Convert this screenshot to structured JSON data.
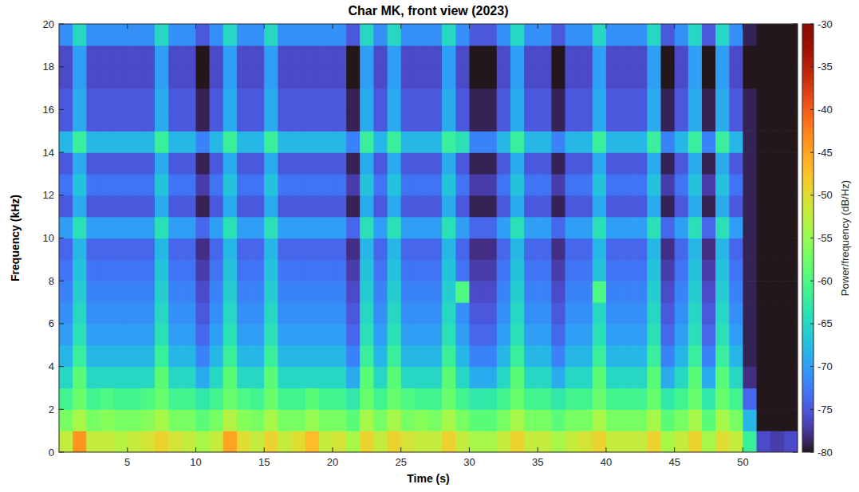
{
  "chart_data": {
    "type": "heatmap",
    "title": "Char MK, front view (2023)",
    "x_label": "Time (s)",
    "y_label": "Frequency (kHz)",
    "colorbar_label": "Power/frequency (dB/Hz)",
    "xlim": [
      0,
      54
    ],
    "ylim": [
      0,
      20
    ],
    "xticks": [
      5,
      10,
      15,
      20,
      25,
      30,
      35,
      40,
      45,
      50
    ],
    "yticks": [
      0,
      2,
      4,
      6,
      8,
      10,
      12,
      14,
      16,
      18,
      20
    ],
    "clim": [
      -80,
      -30
    ],
    "cticks": [
      -30,
      -35,
      -40,
      -45,
      -50,
      -55,
      -60,
      -65,
      -70,
      -75,
      -80
    ],
    "x_bins": [
      0,
      1,
      2,
      3,
      4,
      5,
      6,
      7,
      8,
      9,
      10,
      11,
      12,
      13,
      14,
      15,
      16,
      17,
      18,
      19,
      20,
      21,
      22,
      23,
      24,
      25,
      26,
      27,
      28,
      29,
      30,
      31,
      32,
      33,
      34,
      35,
      36,
      37,
      38,
      39,
      40,
      41,
      42,
      43,
      44,
      45,
      46,
      47,
      48,
      49,
      50,
      51,
      52,
      53,
      54
    ],
    "y_bins": [
      0,
      1,
      2,
      3,
      4,
      5,
      6,
      7,
      8,
      9,
      10,
      11,
      12,
      13,
      14,
      15,
      16,
      17,
      18,
      19,
      20
    ],
    "cells": [
      [
        -52,
        -44,
        -52,
        -52,
        -53,
        -52,
        -51,
        -49,
        -51,
        -52,
        -54,
        -52,
        -45,
        -50,
        -52,
        -49,
        -52,
        -50,
        -47,
        -52,
        -51,
        -54,
        -49,
        -52,
        -49,
        -51,
        -52,
        -52,
        -49,
        -52,
        -54,
        -54,
        -52,
        -49,
        -52,
        -52,
        -54,
        -52,
        -51,
        -49,
        -52,
        -52,
        -52,
        -49,
        -54,
        -52,
        -49,
        -54,
        -50,
        -52,
        -62,
        -76,
        -77,
        -76
      ],
      [
        -57,
        -54,
        -57,
        -56,
        -57,
        -57,
        -56,
        -54,
        -57,
        -57,
        -59,
        -57,
        -53,
        -56,
        -57,
        -54,
        -57,
        -57,
        -55,
        -57,
        -57,
        -59,
        -54,
        -57,
        -54,
        -57,
        -56,
        -57,
        -54,
        -57,
        -59,
        -59,
        -57,
        -54,
        -57,
        -57,
        -59,
        -57,
        -57,
        -54,
        -57,
        -57,
        -57,
        -54,
        -59,
        -57,
        -54,
        -59,
        -54,
        -57,
        -68,
        -80,
        -80,
        -80
      ],
      [
        -61,
        -58,
        -61,
        -60,
        -61,
        -61,
        -60,
        -58,
        -61,
        -61,
        -63,
        -61,
        -58,
        -60,
        -61,
        -58,
        -61,
        -61,
        -59,
        -61,
        -61,
        -63,
        -58,
        -61,
        -58,
        -60,
        -61,
        -61,
        -58,
        -61,
        -63,
        -63,
        -61,
        -58,
        -61,
        -61,
        -63,
        -61,
        -61,
        -58,
        -61,
        -61,
        -61,
        -58,
        -63,
        -61,
        -58,
        -63,
        -58,
        -61,
        -74,
        -80,
        -80,
        -80
      ],
      [
        -65,
        -59,
        -65,
        -65,
        -65,
        -65,
        -65,
        -59,
        -65,
        -65,
        -69,
        -65,
        -59,
        -65,
        -65,
        -59,
        -65,
        -65,
        -65,
        -65,
        -65,
        -69,
        -59,
        -65,
        -59,
        -65,
        -65,
        -65,
        -59,
        -65,
        -69,
        -69,
        -65,
        -59,
        -65,
        -65,
        -69,
        -65,
        -65,
        -59,
        -65,
        -65,
        -65,
        -59,
        -69,
        -65,
        -59,
        -69,
        -59,
        -65,
        -78,
        -80,
        -80,
        -80
      ],
      [
        -68,
        -62,
        -68,
        -68,
        -68,
        -68,
        -68,
        -62,
        -68,
        -68,
        -72,
        -68,
        -62,
        -68,
        -68,
        -62,
        -68,
        -68,
        -68,
        -68,
        -68,
        -72,
        -62,
        -68,
        -62,
        -68,
        -68,
        -68,
        -62,
        -68,
        -72,
        -72,
        -68,
        -62,
        -68,
        -68,
        -72,
        -68,
        -68,
        -62,
        -68,
        -68,
        -68,
        -62,
        -72,
        -68,
        -62,
        -72,
        -62,
        -68,
        -79,
        -80,
        -80,
        -80
      ],
      [
        -70,
        -64,
        -70,
        -70,
        -70,
        -70,
        -70,
        -64,
        -70,
        -70,
        -74,
        -70,
        -64,
        -70,
        -70,
        -64,
        -70,
        -70,
        -70,
        -70,
        -70,
        -74,
        -64,
        -70,
        -64,
        -70,
        -70,
        -70,
        -64,
        -70,
        -74,
        -74,
        -70,
        -64,
        -70,
        -70,
        -74,
        -70,
        -70,
        -64,
        -70,
        -70,
        -70,
        -64,
        -74,
        -70,
        -64,
        -74,
        -64,
        -70,
        -79,
        -80,
        -80,
        -80
      ],
      [
        -71,
        -65,
        -71,
        -71,
        -71,
        -71,
        -71,
        -65,
        -71,
        -71,
        -75,
        -71,
        -65,
        -71,
        -71,
        -65,
        -71,
        -71,
        -71,
        -71,
        -71,
        -75,
        -65,
        -71,
        -65,
        -71,
        -71,
        -71,
        -65,
        -71,
        -75,
        -75,
        -71,
        -65,
        -71,
        -71,
        -75,
        -71,
        -71,
        -65,
        -71,
        -71,
        -71,
        -65,
        -75,
        -71,
        -65,
        -75,
        -65,
        -71,
        -79,
        -80,
        -80,
        -80
      ],
      [
        -72,
        -66,
        -72,
        -72,
        -72,
        -72,
        -72,
        -66,
        -72,
        -72,
        -76,
        -72,
        -66,
        -72,
        -72,
        -66,
        -72,
        -72,
        -72,
        -72,
        -72,
        -76,
        -66,
        -72,
        -66,
        -72,
        -72,
        -72,
        -66,
        -60,
        -76,
        -76,
        -72,
        -66,
        -72,
        -72,
        -76,
        -72,
        -72,
        -60,
        -72,
        -72,
        -72,
        -66,
        -76,
        -72,
        -66,
        -76,
        -66,
        -72,
        -79,
        -80,
        -80,
        -80
      ],
      [
        -73,
        -67,
        -73,
        -73,
        -73,
        -73,
        -73,
        -67,
        -73,
        -73,
        -77,
        -73,
        -67,
        -73,
        -73,
        -67,
        -73,
        -73,
        -73,
        -73,
        -73,
        -77,
        -67,
        -73,
        -67,
        -73,
        -73,
        -73,
        -67,
        -73,
        -77,
        -77,
        -73,
        -67,
        -73,
        -73,
        -77,
        -73,
        -73,
        -67,
        -73,
        -73,
        -73,
        -67,
        -77,
        -73,
        -67,
        -77,
        -67,
        -73,
        -79,
        -80,
        -80,
        -80
      ],
      [
        -74,
        -68,
        -74,
        -74,
        -74,
        -74,
        -74,
        -68,
        -74,
        -74,
        -78,
        -74,
        -68,
        -74,
        -74,
        -68,
        -74,
        -74,
        -74,
        -74,
        -74,
        -78,
        -68,
        -74,
        -68,
        -74,
        -74,
        -74,
        -68,
        -74,
        -78,
        -78,
        -74,
        -68,
        -74,
        -74,
        -78,
        -74,
        -74,
        -68,
        -74,
        -74,
        -74,
        -68,
        -78,
        -74,
        -68,
        -78,
        -68,
        -74,
        -79,
        -80,
        -80,
        -80
      ],
      [
        -70,
        -64,
        -70,
        -70,
        -70,
        -70,
        -70,
        -64,
        -70,
        -70,
        -74,
        -70,
        -64,
        -70,
        -70,
        -64,
        -70,
        -70,
        -70,
        -70,
        -70,
        -74,
        -64,
        -70,
        -64,
        -70,
        -70,
        -70,
        -64,
        -70,
        -74,
        -74,
        -70,
        -64,
        -70,
        -70,
        -74,
        -70,
        -70,
        -64,
        -70,
        -70,
        -70,
        -64,
        -74,
        -70,
        -64,
        -74,
        -64,
        -70,
        -79,
        -80,
        -80,
        -80
      ],
      [
        -75,
        -69,
        -75,
        -75,
        -75,
        -75,
        -75,
        -69,
        -75,
        -75,
        -79,
        -75,
        -69,
        -75,
        -75,
        -69,
        -75,
        -75,
        -75,
        -75,
        -75,
        -79,
        -69,
        -75,
        -69,
        -75,
        -75,
        -75,
        -69,
        -75,
        -79,
        -79,
        -75,
        -69,
        -75,
        -75,
        -79,
        -75,
        -75,
        -69,
        -75,
        -75,
        -75,
        -69,
        -79,
        -75,
        -69,
        -79,
        -69,
        -75,
        -79,
        -80,
        -80,
        -80
      ],
      [
        -73,
        -67,
        -73,
        -73,
        -73,
        -73,
        -73,
        -67,
        -73,
        -73,
        -77,
        -73,
        -67,
        -73,
        -73,
        -67,
        -73,
        -73,
        -73,
        -73,
        -73,
        -77,
        -67,
        -73,
        -67,
        -73,
        -73,
        -73,
        -67,
        -73,
        -77,
        -77,
        -73,
        -67,
        -73,
        -73,
        -77,
        -73,
        -73,
        -67,
        -73,
        -73,
        -73,
        -67,
        -77,
        -73,
        -67,
        -77,
        -67,
        -73,
        -79,
        -80,
        -80,
        -80
      ],
      [
        -75,
        -69,
        -75,
        -75,
        -75,
        -75,
        -75,
        -69,
        -75,
        -75,
        -79,
        -75,
        -69,
        -75,
        -75,
        -69,
        -75,
        -75,
        -75,
        -75,
        -75,
        -79,
        -69,
        -75,
        -69,
        -75,
        -75,
        -75,
        -69,
        -75,
        -79,
        -79,
        -75,
        -69,
        -75,
        -75,
        -79,
        -75,
        -75,
        -69,
        -75,
        -75,
        -75,
        -69,
        -79,
        -75,
        -69,
        -79,
        -69,
        -75,
        -79,
        -80,
        -80,
        -80
      ],
      [
        -68,
        -62,
        -68,
        -68,
        -68,
        -68,
        -68,
        -62,
        -68,
        -68,
        -72,
        -68,
        -62,
        -68,
        -68,
        -62,
        -68,
        -68,
        -68,
        -68,
        -68,
        -72,
        -62,
        -68,
        -62,
        -68,
        -68,
        -68,
        -62,
        -64,
        -72,
        -72,
        -68,
        -62,
        -68,
        -68,
        -72,
        -68,
        -68,
        -62,
        -68,
        -68,
        -68,
        -62,
        -72,
        -68,
        -62,
        -72,
        -62,
        -68,
        -79,
        -80,
        -80,
        -80
      ],
      [
        -75,
        -69,
        -75,
        -75,
        -75,
        -75,
        -75,
        -69,
        -75,
        -75,
        -79,
        -75,
        -69,
        -75,
        -75,
        -69,
        -75,
        -75,
        -75,
        -75,
        -75,
        -79,
        -69,
        -75,
        -69,
        -75,
        -75,
        -75,
        -69,
        -75,
        -79,
        -79,
        -75,
        -69,
        -75,
        -75,
        -79,
        -75,
        -75,
        -69,
        -75,
        -75,
        -75,
        -69,
        -79,
        -75,
        -69,
        -79,
        -69,
        -75,
        -79,
        -80,
        -80,
        -80
      ],
      [
        -75,
        -69,
        -75,
        -75,
        -75,
        -75,
        -75,
        -69,
        -75,
        -75,
        -79,
        -75,
        -69,
        -75,
        -75,
        -69,
        -75,
        -75,
        -75,
        -75,
        -75,
        -79,
        -69,
        -75,
        -69,
        -75,
        -75,
        -75,
        -69,
        -75,
        -79,
        -79,
        -75,
        -69,
        -75,
        -75,
        -79,
        -75,
        -75,
        -69,
        -75,
        -75,
        -75,
        -69,
        -79,
        -75,
        -69,
        -79,
        -69,
        -75,
        -79,
        -80,
        -80,
        -80
      ],
      [
        -76,
        -70,
        -76,
        -76,
        -76,
        -76,
        -76,
        -70,
        -76,
        -76,
        -80,
        -76,
        -70,
        -76,
        -76,
        -70,
        -76,
        -76,
        -76,
        -76,
        -76,
        -80,
        -70,
        -76,
        -70,
        -76,
        -76,
        -76,
        -70,
        -76,
        -80,
        -80,
        -76,
        -70,
        -76,
        -76,
        -80,
        -76,
        -76,
        -70,
        -76,
        -76,
        -76,
        -70,
        -80,
        -76,
        -70,
        -80,
        -70,
        -76,
        -80,
        -80,
        -80,
        -80
      ],
      [
        -76,
        -70,
        -76,
        -76,
        -76,
        -76,
        -76,
        -70,
        -76,
        -76,
        -80,
        -76,
        -70,
        -76,
        -76,
        -70,
        -76,
        -76,
        -76,
        -76,
        -76,
        -80,
        -70,
        -76,
        -70,
        -76,
        -76,
        -76,
        -70,
        -76,
        -80,
        -80,
        -76,
        -70,
        -76,
        -76,
        -80,
        -76,
        -76,
        -70,
        -76,
        -76,
        -76,
        -70,
        -80,
        -76,
        -70,
        -80,
        -70,
        -76,
        -80,
        -80,
        -80,
        -80
      ],
      [
        -71,
        -65,
        -71,
        -71,
        -71,
        -71,
        -71,
        -65,
        -71,
        -71,
        -75,
        -71,
        -65,
        -71,
        -71,
        -65,
        -71,
        -71,
        -71,
        -71,
        -71,
        -75,
        -65,
        -71,
        -65,
        -71,
        -71,
        -71,
        -65,
        -71,
        -75,
        -75,
        -71,
        -65,
        -71,
        -71,
        -75,
        -71,
        -71,
        -65,
        -71,
        -71,
        -71,
        -65,
        -75,
        -71,
        -65,
        -75,
        -65,
        -71,
        -79,
        -80,
        -80,
        -80
      ]
    ]
  }
}
